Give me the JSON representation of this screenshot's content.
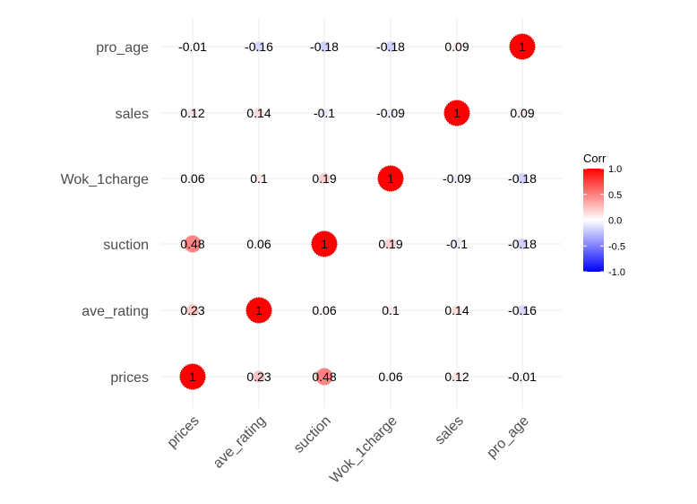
{
  "chart_data": {
    "type": "heatmap",
    "style": "circle-correlation-matrix",
    "variables": [
      "prices",
      "ave_rating",
      "suction",
      "Wok_1charge",
      "sales",
      "pro_age"
    ],
    "x_categories": [
      "prices",
      "ave_rating",
      "suction",
      "Wok_1charge",
      "sales",
      "pro_age"
    ],
    "y_categories_bottom_to_top": [
      "prices",
      "ave_rating",
      "suction",
      "Wok_1charge",
      "sales",
      "pro_age"
    ],
    "matrix": [
      [
        1,
        0.23,
        0.48,
        0.06,
        0.12,
        -0.01
      ],
      [
        0.23,
        1,
        0.06,
        0.1,
        0.14,
        -0.16
      ],
      [
        0.48,
        0.06,
        1,
        0.19,
        -0.1,
        -0.18
      ],
      [
        0.06,
        0.1,
        0.19,
        1,
        -0.09,
        -0.18
      ],
      [
        0.12,
        0.14,
        -0.1,
        -0.09,
        1,
        0.09
      ],
      [
        -0.01,
        -0.16,
        -0.18,
        -0.18,
        0.09,
        1
      ]
    ],
    "value_labels": true,
    "grid": true,
    "legend": {
      "title": "Corr",
      "placement": "right",
      "ticks": [
        1.0,
        0.5,
        0.0,
        -0.5,
        -1.0
      ],
      "tick_labels": [
        "1.0",
        "0.5",
        "0.0",
        "-0.5",
        "-1.0"
      ],
      "range": [
        -1,
        1
      ]
    },
    "colors": {
      "low": "#0000FF",
      "mid": "#FFFFFF",
      "high": "#FF0000",
      "grid": "#EBEBEB",
      "axis_text": "#4D4D4D",
      "label_text": "#000000"
    }
  }
}
